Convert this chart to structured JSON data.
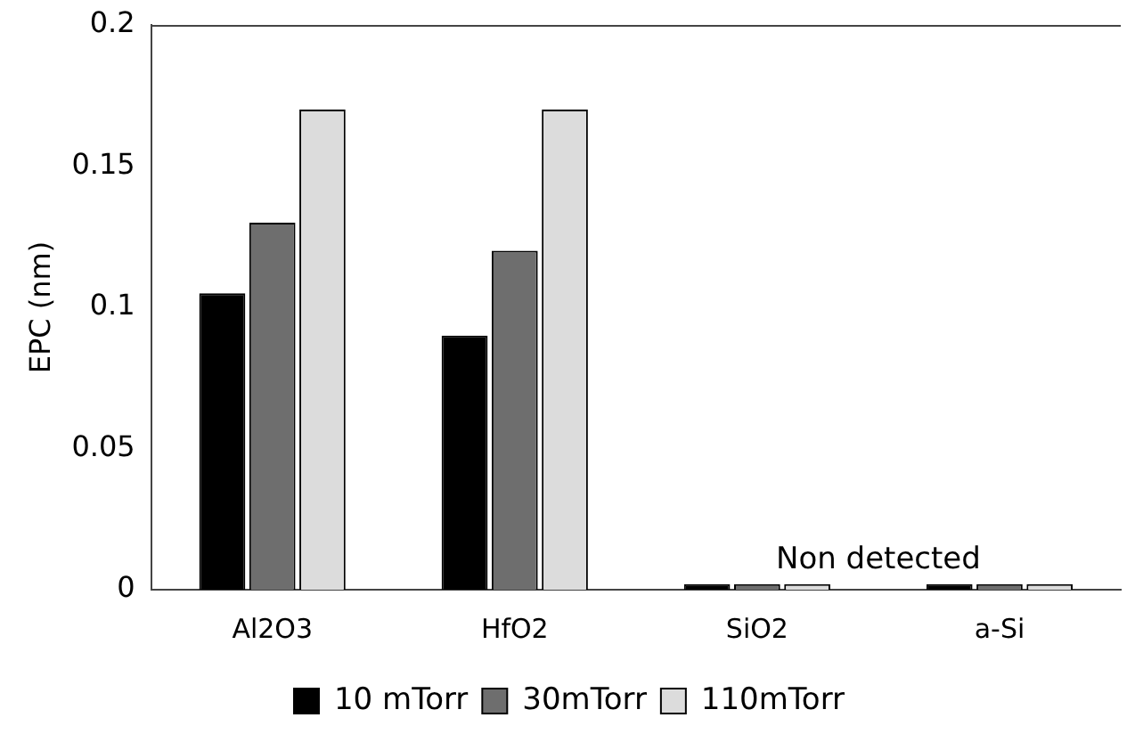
{
  "chart_data": {
    "type": "bar",
    "ylabel": "EPC (nm)",
    "categories": [
      "Al2O3",
      "HfO2",
      "SiO2",
      "a-Si"
    ],
    "series": [
      {
        "name": "10 mTorr",
        "color": "#000000",
        "values": [
          0.105,
          0.09,
          0.002,
          0.002
        ]
      },
      {
        "name": "30mTorr",
        "color": "#6e6e6e",
        "values": [
          0.13,
          0.12,
          0.002,
          0.002
        ]
      },
      {
        "name": "110mTorr",
        "color": "#dcdcdc",
        "values": [
          0.17,
          0.17,
          0.002,
          0.002
        ]
      }
    ],
    "ylim": [
      0,
      0.2
    ],
    "yticks": [
      0,
      0.05,
      0.1,
      0.15,
      0.2
    ],
    "grid": false,
    "legend": "bottom",
    "annotations": [
      "Non detected"
    ]
  }
}
